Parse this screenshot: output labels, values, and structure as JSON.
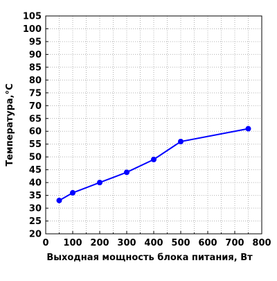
{
  "chart_data": {
    "type": "line",
    "title": "",
    "xlabel": "Выходная мощность блока питания, Вт",
    "ylabel": "Температура,°C",
    "xlim": [
      0,
      800
    ],
    "ylim": [
      20,
      105
    ],
    "x_ticks": [
      0,
      100,
      200,
      300,
      400,
      500,
      600,
      700,
      800
    ],
    "y_ticks": [
      20,
      25,
      30,
      35,
      40,
      45,
      50,
      55,
      60,
      65,
      70,
      75,
      80,
      85,
      90,
      95,
      100,
      105
    ],
    "grid": true,
    "legend": "none",
    "series": [
      {
        "color": "#0000ff",
        "points": [
          {
            "x": 50,
            "y": 33
          },
          {
            "x": 100,
            "y": 36
          },
          {
            "x": 200,
            "y": 40
          },
          {
            "x": 300,
            "y": 44
          },
          {
            "x": 400,
            "y": 49
          },
          {
            "x": 500,
            "y": 56
          },
          {
            "x": 750,
            "y": 61
          }
        ]
      }
    ]
  }
}
